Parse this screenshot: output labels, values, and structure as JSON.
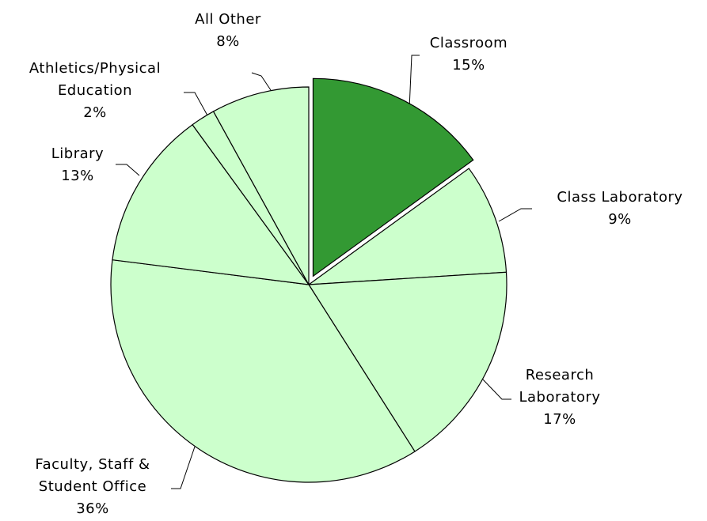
{
  "chart_data": {
    "type": "pie",
    "categories": [
      "Classroom",
      "Class Laboratory",
      "Research Laboratory",
      "Faculty, Staff & Student Office",
      "Library",
      "Athletics/Physical Education",
      "All Other"
    ],
    "values": [
      15,
      9,
      17,
      36,
      13,
      2,
      8
    ],
    "value_labels": [
      "15%",
      "9%",
      "17%",
      "36%",
      "13%",
      "2%",
      "8%"
    ],
    "colors": [
      "#339933",
      "#ccffcc",
      "#ccffcc",
      "#ccffcc",
      "#ccffcc",
      "#ccffcc",
      "#ccffcc"
    ],
    "exploded": [
      0
    ]
  }
}
